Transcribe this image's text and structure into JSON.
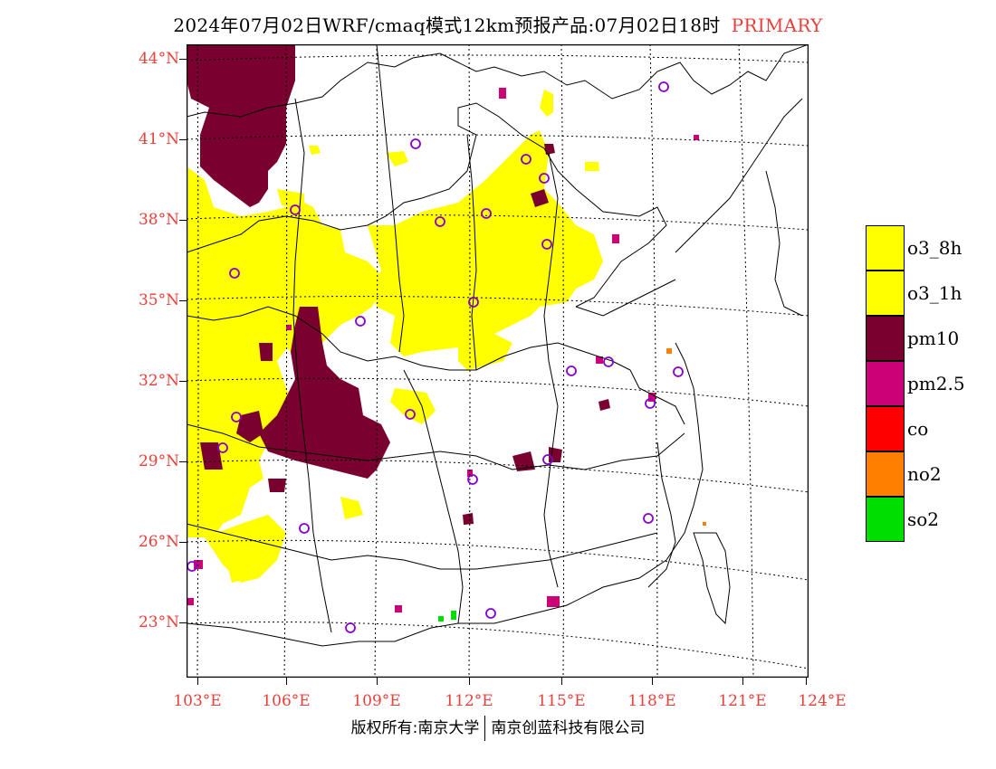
{
  "title": {
    "text": "2024年07月02日WRF/cmaq模式12km预报产品:07月02日18时",
    "tag": "PRIMARY"
  },
  "lat_labels": [
    "44°N",
    "41°N",
    "38°N",
    "35°N",
    "32°N",
    "29°N",
    "26°N",
    "23°N"
  ],
  "lon_labels": [
    "103°E",
    "106°E",
    "109°E",
    "112°E",
    "115°E",
    "118°E",
    "121°E",
    "124°E"
  ],
  "legend": [
    {
      "label": "o3_8h",
      "color": "#ffff00"
    },
    {
      "label": "o3_1h",
      "color": "#ffff00"
    },
    {
      "label": "pm10",
      "color": "#7a0030"
    },
    {
      "label": "pm2.5",
      "color": "#cc0077"
    },
    {
      "label": "co",
      "color": "#ff0000"
    },
    {
      "label": "no2",
      "color": "#ff7f00"
    },
    {
      "label": "so2",
      "color": "#00dd00"
    }
  ],
  "footer": {
    "left": "版权所有:南京大学",
    "right": "南京创蓝科技有限公司"
  }
}
